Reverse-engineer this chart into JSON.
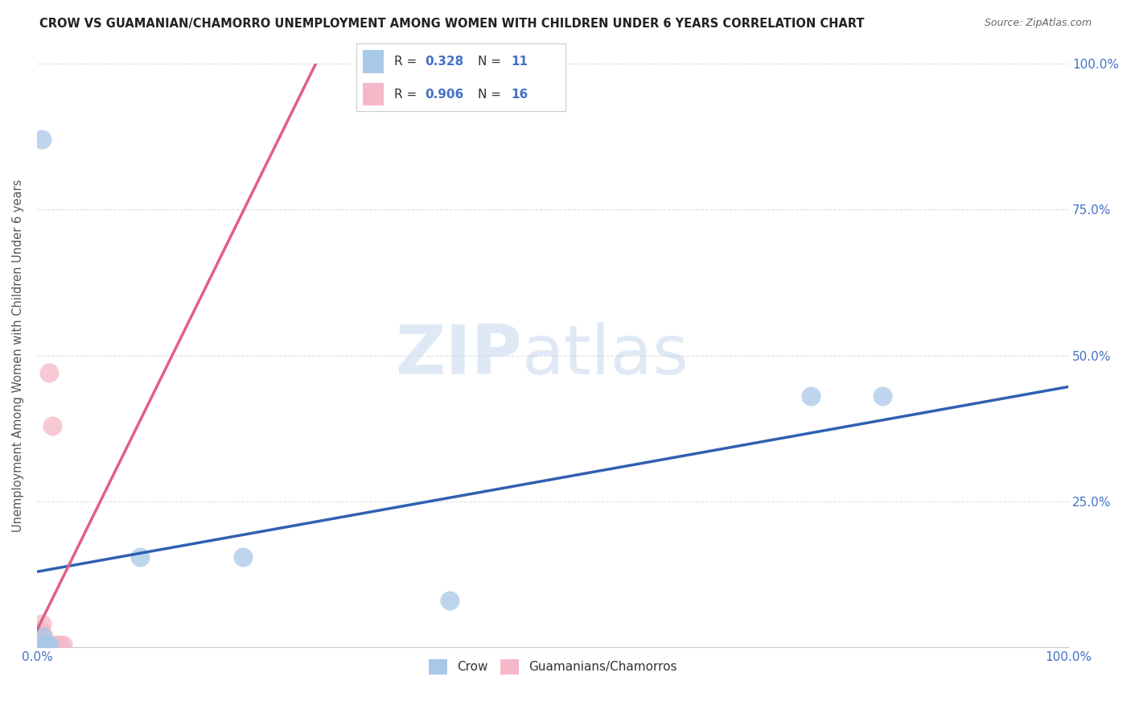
{
  "title": "CROW VS GUAMANIAN/CHAMORRO UNEMPLOYMENT AMONG WOMEN WITH CHILDREN UNDER 6 YEARS CORRELATION CHART",
  "source": "Source: ZipAtlas.com",
  "ylabel": "Unemployment Among Women with Children Under 6 years",
  "xlim": [
    0,
    1.0
  ],
  "ylim": [
    0,
    1.0
  ],
  "xticks": [
    0.0,
    0.1,
    0.2,
    0.3,
    0.4,
    0.5,
    0.6,
    0.7,
    0.8,
    0.9,
    1.0
  ],
  "yticks": [
    0.0,
    0.25,
    0.5,
    0.75,
    1.0
  ],
  "crow_x": [
    0.005,
    0.005,
    0.007,
    0.008,
    0.01,
    0.012,
    0.1,
    0.2,
    0.4,
    0.75,
    0.82
  ],
  "crow_y": [
    0.87,
    0.02,
    0.005,
    0.005,
    0.005,
    0.005,
    0.155,
    0.155,
    0.08,
    0.43,
    0.43
  ],
  "guam_x": [
    0.001,
    0.002,
    0.003,
    0.003,
    0.004,
    0.005,
    0.006,
    0.007,
    0.008,
    0.009,
    0.01,
    0.012,
    0.015,
    0.018,
    0.022,
    0.025
  ],
  "guam_y": [
    0.005,
    0.01,
    0.02,
    0.03,
    0.005,
    0.04,
    0.02,
    0.005,
    0.005,
    0.005,
    0.005,
    0.47,
    0.38,
    0.005,
    0.005,
    0.005
  ],
  "crow_color": "#a8c8e8",
  "guam_color": "#f5b8c8",
  "crow_line_color": "#3060b0",
  "guam_line_color": "#e06080",
  "crow_r": 0.328,
  "crow_n": 11,
  "guam_r": 0.906,
  "guam_n": 16,
  "background_color": "#ffffff",
  "grid_color": "#d8d8d8",
  "watermark_zip": "ZIP",
  "watermark_atlas": "atlas",
  "legend_crow": "Crow",
  "legend_guam": "Guamanians/Chamorros"
}
